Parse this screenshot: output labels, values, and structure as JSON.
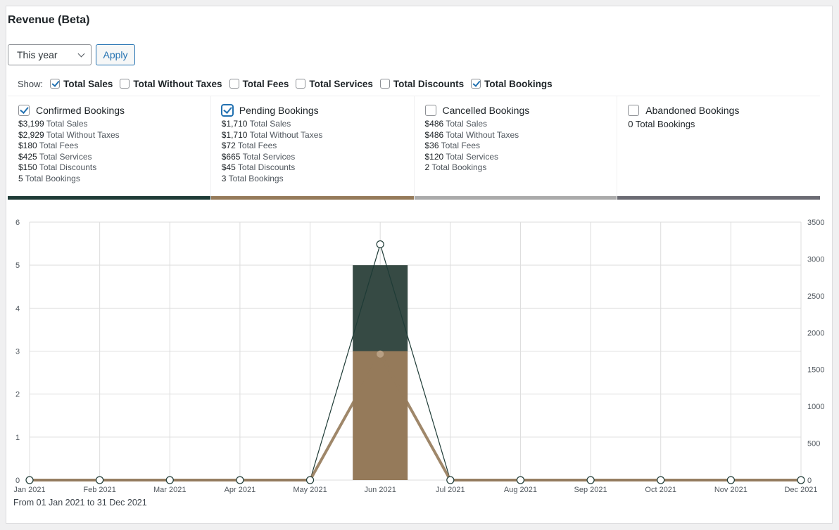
{
  "header": {
    "title": "Revenue (Beta)"
  },
  "controls": {
    "range_value": "This year",
    "apply_label": "Apply"
  },
  "show": {
    "label": "Show:",
    "options": [
      {
        "label": "Total Sales",
        "checked": true
      },
      {
        "label": "Total Without Taxes",
        "checked": false
      },
      {
        "label": "Total Fees",
        "checked": false
      },
      {
        "label": "Total Services",
        "checked": false
      },
      {
        "label": "Total Discounts",
        "checked": false
      },
      {
        "label": "Total Bookings",
        "checked": true
      }
    ]
  },
  "cards": [
    {
      "title": "Confirmed Bookings",
      "checked": true,
      "color": "#1e3b36",
      "metrics": [
        {
          "value": "$3,199",
          "label": "Total Sales"
        },
        {
          "value": "$2,929",
          "label": "Total Without Taxes"
        },
        {
          "value": "$180",
          "label": "Total Fees"
        },
        {
          "value": "$425",
          "label": "Total Services"
        },
        {
          "value": "$150",
          "label": "Total Discounts"
        },
        {
          "value": "5",
          "label": "Total Bookings"
        }
      ]
    },
    {
      "title": "Pending Bookings",
      "checked": true,
      "color": "#957a5a",
      "metrics": [
        {
          "value": "$1,710",
          "label": "Total Sales"
        },
        {
          "value": "$1,710",
          "label": "Total Without Taxes"
        },
        {
          "value": "$72",
          "label": "Total Fees"
        },
        {
          "value": "$665",
          "label": "Total Services"
        },
        {
          "value": "$45",
          "label": "Total Discounts"
        },
        {
          "value": "3",
          "label": "Total Bookings"
        }
      ]
    },
    {
      "title": "Cancelled Bookings",
      "checked": false,
      "color": "#aaaaaa",
      "metrics": [
        {
          "value": "$486",
          "label": "Total Sales"
        },
        {
          "value": "$486",
          "label": "Total Without Taxes"
        },
        {
          "value": "$36",
          "label": "Total Fees"
        },
        {
          "value": "$120",
          "label": "Total Services"
        },
        {
          "value": "2",
          "label": "Total Bookings"
        }
      ]
    },
    {
      "title": "Abandoned Bookings",
      "checked": false,
      "color": "#6b6b73",
      "metrics": [
        {
          "value": "0",
          "label": "Total Bookings"
        }
      ]
    }
  ],
  "chart_data": {
    "type": "bar",
    "categories": [
      "Jan 2021",
      "Feb 2021",
      "Mar 2021",
      "Apr 2021",
      "May 2021",
      "Jun 2021",
      "Jul 2021",
      "Aug 2021",
      "Sep 2021",
      "Oct 2021",
      "Nov 2021",
      "Dec 2021"
    ],
    "left_axis": {
      "ylim": [
        0,
        6
      ],
      "ticks": [
        0,
        1,
        2,
        3,
        4,
        5,
        6
      ]
    },
    "right_axis": {
      "ylim": [
        0,
        3500
      ],
      "ticks": [
        0,
        500,
        1000,
        1500,
        2000,
        2500,
        3000,
        3500
      ]
    },
    "grid": true,
    "bar_series": [
      {
        "axis": "left",
        "stacked": true,
        "color": "#957a5a",
        "values": [
          0,
          0,
          0,
          0,
          0,
          3,
          0,
          0,
          0,
          0,
          0,
          0
        ]
      },
      {
        "axis": "left",
        "stacked": true,
        "color": "#364a44",
        "values": [
          0,
          0,
          0,
          0,
          0,
          2,
          0,
          0,
          0,
          0,
          0,
          0
        ]
      }
    ],
    "line_series": [
      {
        "axis": "right",
        "color": "#1e3b36",
        "width": 1.2,
        "values": [
          0,
          0,
          0,
          0,
          0,
          3199,
          0,
          0,
          0,
          0,
          0,
          0
        ]
      },
      {
        "axis": "right",
        "color": "#957a5a",
        "width": 4,
        "values": [
          0,
          0,
          0,
          0,
          0,
          1710,
          0,
          0,
          0,
          0,
          0,
          0
        ]
      }
    ]
  },
  "footer": {
    "range_text": "From 01 Jan 2021 to 31 Dec 2021"
  }
}
